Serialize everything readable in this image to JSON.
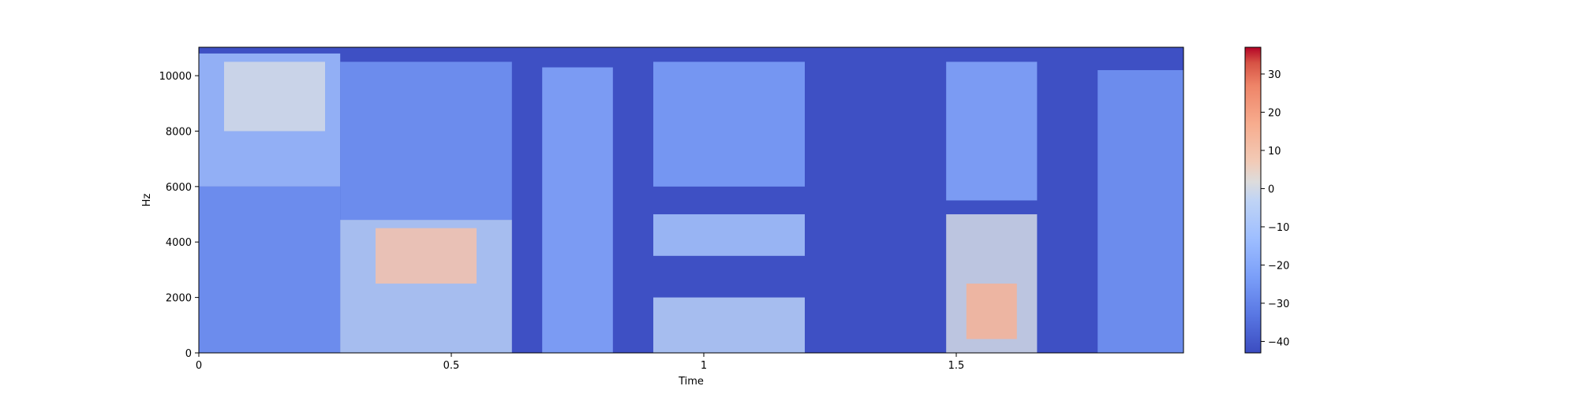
{
  "chart_data": {
    "type": "heatmap",
    "title": "",
    "xlabel": "Time",
    "ylabel": "Hz",
    "xlim": [
      0,
      1.95
    ],
    "ylim": [
      0,
      11025
    ],
    "x_ticks": [
      {
        "value": 0,
        "label": "0"
      },
      {
        "value": 0.5,
        "label": "0.5"
      },
      {
        "value": 1.0,
        "label": "1"
      },
      {
        "value": 1.5,
        "label": "1.5"
      }
    ],
    "y_ticks": [
      {
        "value": 0,
        "label": "0"
      },
      {
        "value": 2000,
        "label": "2000"
      },
      {
        "value": 4000,
        "label": "4000"
      },
      {
        "value": 6000,
        "label": "6000"
      },
      {
        "value": 8000,
        "label": "8000"
      },
      {
        "value": 10000,
        "label": "10000"
      }
    ],
    "colormap": "coolwarm",
    "colorbar": {
      "range": [
        -43,
        37
      ],
      "ticks": [
        {
          "value": 30,
          "label": "30"
        },
        {
          "value": 20,
          "label": "20"
        },
        {
          "value": 10,
          "label": "10"
        },
        {
          "value": 0,
          "label": "0"
        },
        {
          "value": -10,
          "label": "−10"
        },
        {
          "value": -20,
          "label": "−20"
        },
        {
          "value": -30,
          "label": "−30"
        },
        {
          "value": -40,
          "label": "−40"
        }
      ]
    },
    "regions_db": [
      {
        "t0": 0.0,
        "t1": 0.28,
        "f0": 6000,
        "f1": 10800,
        "db": -12
      },
      {
        "t0": 0.05,
        "t1": 0.25,
        "f0": 8000,
        "f1": 10500,
        "db": 0
      },
      {
        "t0": 0.0,
        "t1": 0.28,
        "f0": 0,
        "f1": 6000,
        "db": -25
      },
      {
        "t0": 0.28,
        "t1": 0.62,
        "f0": 0,
        "f1": 4800,
        "db": -5
      },
      {
        "t0": 0.35,
        "t1": 0.55,
        "f0": 2500,
        "f1": 4500,
        "db": 10
      },
      {
        "t0": 0.28,
        "t1": 0.62,
        "f0": 4800,
        "f1": 10500,
        "db": -25
      },
      {
        "t0": 0.68,
        "t1": 0.82,
        "f0": 0,
        "f1": 10300,
        "db": -20
      },
      {
        "t0": 0.9,
        "t1": 1.2,
        "f0": 3500,
        "f1": 5000,
        "db": -10
      },
      {
        "t0": 0.9,
        "t1": 1.2,
        "f0": 6000,
        "f1": 10500,
        "db": -22
      },
      {
        "t0": 0.9,
        "t1": 1.2,
        "f0": 0,
        "f1": 2000,
        "db": -5
      },
      {
        "t0": 1.48,
        "t1": 1.66,
        "f0": 0,
        "f1": 5000,
        "db": 0
      },
      {
        "t0": 1.52,
        "t1": 1.62,
        "f0": 500,
        "f1": 2500,
        "db": 15
      },
      {
        "t0": 1.48,
        "t1": 1.66,
        "f0": 5500,
        "f1": 10500,
        "db": -20
      },
      {
        "t0": 1.78,
        "t1": 1.95,
        "f0": 0,
        "f1": 10200,
        "db": -25
      }
    ]
  }
}
